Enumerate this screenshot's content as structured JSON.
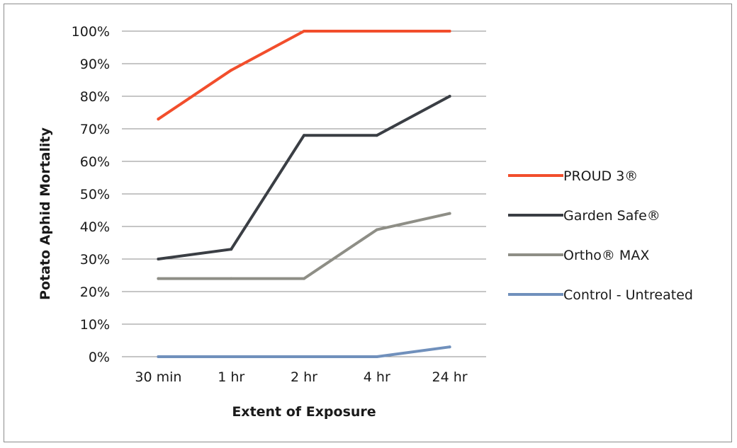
{
  "chart_data": {
    "type": "line",
    "title": "",
    "xlabel": "Extent of Exposure",
    "ylabel": "Potato Aphid Mortality",
    "categories": [
      "30 min",
      "1 hr",
      "2 hr",
      "4 hr",
      "24 hr"
    ],
    "ylim": [
      0,
      100
    ],
    "yticks": [
      "0%",
      "10%",
      "20%",
      "30%",
      "40%",
      "50%",
      "60%",
      "70%",
      "80%",
      "90%",
      "100%"
    ],
    "grid": "horizontal",
    "legend_position": "right",
    "series": [
      {
        "name": "PROUD 3®",
        "color": "#f24e2c",
        "values": [
          73,
          88,
          100,
          100,
          100
        ]
      },
      {
        "name": "Garden Safe®",
        "color": "#3a3e44",
        "values": [
          30,
          33,
          68,
          68,
          80
        ]
      },
      {
        "name": "Ortho® MAX",
        "color": "#8e8e86",
        "values": [
          24,
          24,
          24,
          39,
          44
        ]
      },
      {
        "name": "Control - Untreated",
        "color": "#7090bc",
        "values": [
          0,
          0,
          0,
          0,
          3
        ]
      }
    ]
  }
}
